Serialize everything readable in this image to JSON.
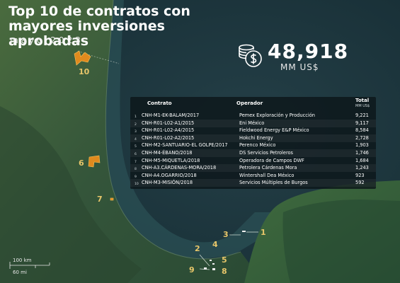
{
  "header": {
    "title": "Top 10 de contratos con mayores inversiones aprobadas",
    "subtitle": "mayo 2023"
  },
  "total": {
    "value": "48,918",
    "unit": "MM US$",
    "icon": "coins-dollar-icon"
  },
  "table": {
    "headers": {
      "contract": "Contrato",
      "operator": "Operador",
      "total": "Total",
      "total_unit": "MM US$"
    },
    "rows": [
      {
        "n": "1",
        "contract": "CNH-M1-EK-BALAM/2017",
        "operator": "Pemex Exploración y Producción",
        "amount": "9,221"
      },
      {
        "n": "2",
        "contract": "CNH-R01-L02-A1/2015",
        "operator": "Eni México",
        "amount": "9,117"
      },
      {
        "n": "3",
        "contract": "CNH-R01-L02-A4/2015",
        "operator": "Fieldwood Energy E&P México",
        "amount": "8,584"
      },
      {
        "n": "4",
        "contract": "CNH-R01-L02-A2/2015",
        "operator": "Hokchi Energy",
        "amount": "2,728"
      },
      {
        "n": "5",
        "contract": "CNH-M2-SANTUARIO-EL GOLPE/2017",
        "operator": "Perenco México",
        "amount": "1,903"
      },
      {
        "n": "6",
        "contract": "CNH-M4-ÉBANO/2018",
        "operator": "DS Servicios Petroleros",
        "amount": "1,746"
      },
      {
        "n": "7",
        "contract": "CNH-M5-MIQUETLA/2018",
        "operator": "Operadora de Campos DWF",
        "amount": "1,684"
      },
      {
        "n": "8",
        "contract": "CNH-A3.CÁRDENAS-MORA/2018",
        "operator": "Petrolera Cárdenas Mora",
        "amount": "1,243"
      },
      {
        "n": "9",
        "contract": "CNH-A4.OGARRIO/2018",
        "operator": "Wintershall Dea México",
        "amount": "923"
      },
      {
        "n": "10",
        "contract": "CNH-M3-MISIÓN/2018",
        "operator": "Servicios Múltiples de Burgos",
        "amount": "592"
      }
    ]
  },
  "map": {
    "labels": {
      "l10": "10",
      "l6": "6",
      "l7": "7",
      "l3": "3",
      "l1": "1",
      "l2": "2",
      "l4": "4",
      "l5": "5",
      "l9": "9",
      "l8": "8"
    },
    "scale": {
      "km": "100 km",
      "mi": "60 mi"
    },
    "colors": {
      "marker": "#e08a1e",
      "label": "#e7c66a",
      "water": "#1e4a52",
      "land": "#3c5a3a"
    }
  }
}
